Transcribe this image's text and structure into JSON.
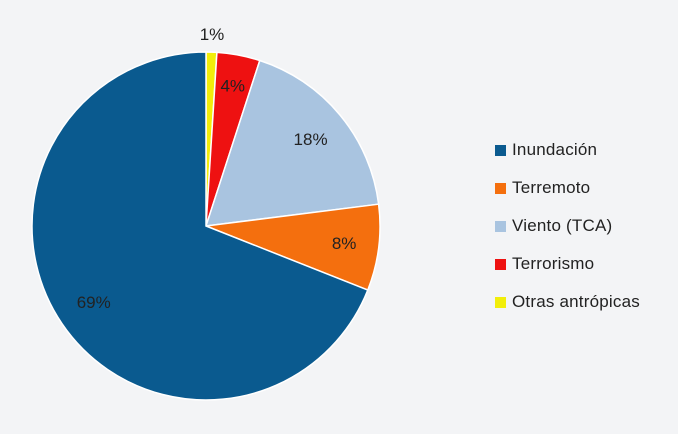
{
  "chart_data": {
    "type": "pie",
    "title": "",
    "slices": [
      {
        "name": "Inundación",
        "value": 69,
        "label": "69%",
        "color": "#0a5a8f"
      },
      {
        "name": "Terremoto",
        "value": 8,
        "label": "8%",
        "color": "#f46f0e"
      },
      {
        "name": "Viento (TCA)",
        "value": 18,
        "label": "18%",
        "color": "#a9c4e0"
      },
      {
        "name": "Terrorismo",
        "value": 4,
        "label": "4%",
        "color": "#ee1111"
      },
      {
        "name": "Otras antrópicas",
        "value": 1,
        "label": "1%",
        "color": "#f2ee0a"
      }
    ],
    "legend_position": "right"
  }
}
